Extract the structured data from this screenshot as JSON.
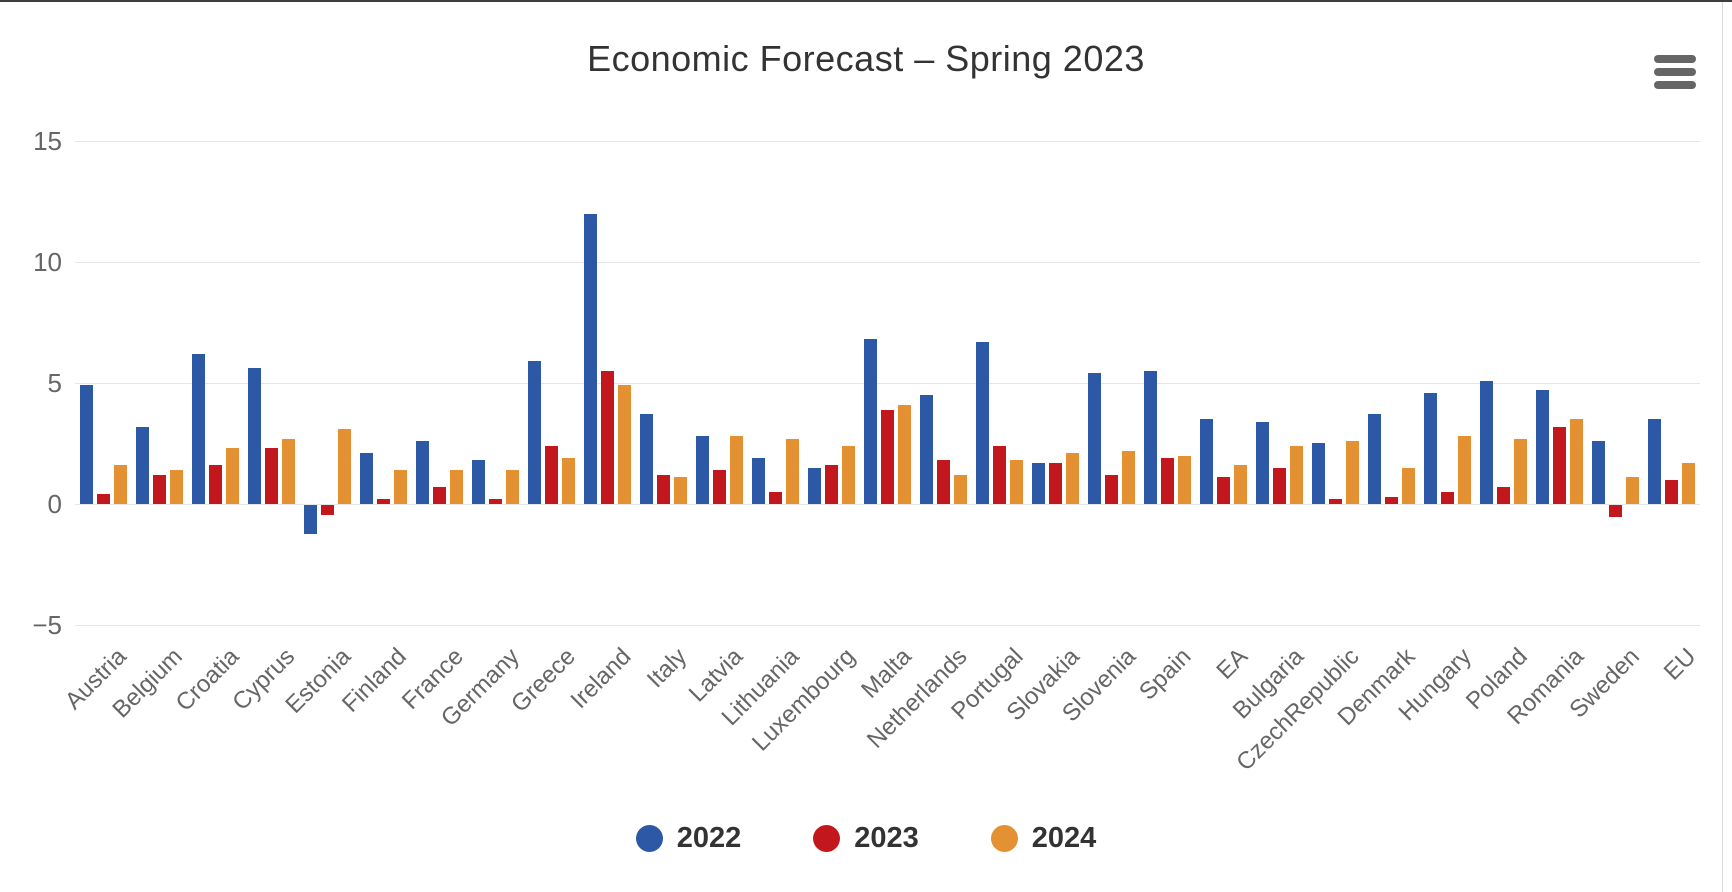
{
  "chart_data": {
    "type": "bar",
    "title": "Economic Forecast – Spring 2023",
    "categories": [
      "Austria",
      "Belgium",
      "Croatia",
      "Cyprus",
      "Estonia",
      "Finland",
      "France",
      "Germany",
      "Greece",
      "Ireland",
      "Italy",
      "Latvia",
      "Lithuania",
      "Luxembourg",
      "Malta",
      "Netherlands",
      "Portugal",
      "Slovakia",
      "Slovenia",
      "Spain",
      "EA",
      "Bulgaria",
      "CzechRepublic",
      "Denmark",
      "Hungary",
      "Poland",
      "Romania",
      "Sweden",
      "EU"
    ],
    "series": [
      {
        "name": "2022",
        "color": "#2c58a5",
        "values": [
          4.9,
          3.2,
          6.2,
          5.6,
          -1.2,
          2.1,
          2.6,
          1.8,
          5.9,
          12.0,
          3.7,
          2.8,
          1.9,
          1.5,
          6.8,
          4.5,
          6.7,
          1.7,
          5.4,
          5.5,
          3.5,
          3.4,
          2.5,
          3.7,
          4.6,
          5.1,
          4.7,
          2.6,
          3.5
        ]
      },
      {
        "name": "2023",
        "color": "#c2181d",
        "values": [
          0.4,
          1.2,
          1.6,
          2.3,
          -0.4,
          0.2,
          0.7,
          0.2,
          2.4,
          5.5,
          1.2,
          1.4,
          0.5,
          1.6,
          3.9,
          1.8,
          2.4,
          1.7,
          1.2,
          1.9,
          1.1,
          1.5,
          0.2,
          0.3,
          0.5,
          0.7,
          3.2,
          -0.5,
          1.0
        ]
      },
      {
        "name": "2024",
        "color": "#e39132",
        "values": [
          1.6,
          1.4,
          2.3,
          2.7,
          3.1,
          1.4,
          1.4,
          1.4,
          1.9,
          4.9,
          1.1,
          2.8,
          2.7,
          2.4,
          4.1,
          1.2,
          1.8,
          2.1,
          2.2,
          2.0,
          1.6,
          2.4,
          2.6,
          1.5,
          2.8,
          2.7,
          3.5,
          1.1,
          1.7
        ]
      }
    ],
    "ylim": [
      -5,
      15
    ],
    "yticks": [
      15,
      10,
      5,
      0,
      -5
    ],
    "grid": true,
    "legend_position": "bottom",
    "xlabel": "",
    "ylabel": ""
  },
  "controls": {
    "menu_icon": "hamburger-icon"
  },
  "colors": {
    "gridline": "#e6e6e6",
    "axis_label": "#666666",
    "title": "#333333"
  }
}
